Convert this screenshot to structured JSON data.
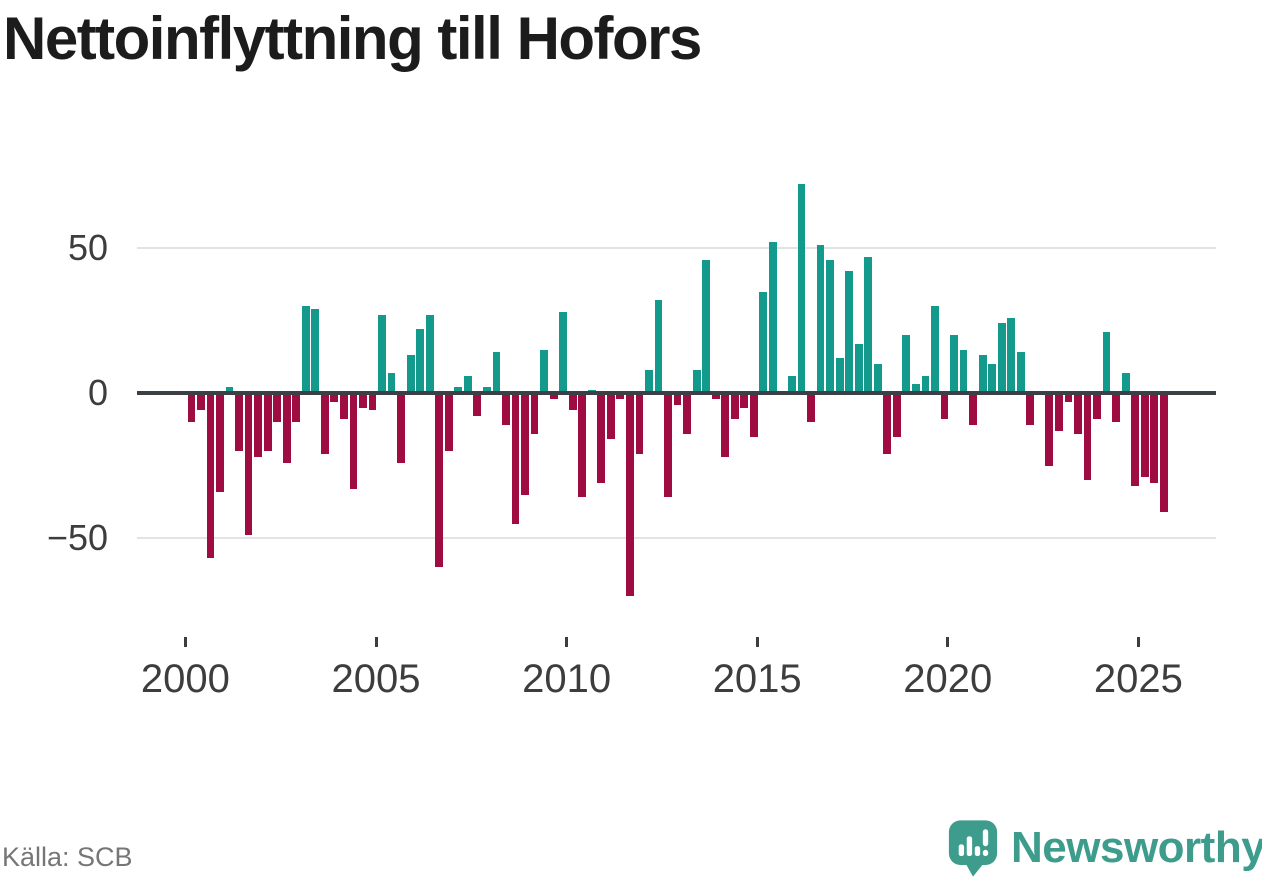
{
  "title": "Nettoinflyttning till Hofors",
  "source": "Källa: SCB",
  "logo": {
    "text": "Newsworthy",
    "icon": "newsworthy-speech-bubble-bar-chart-icon"
  },
  "colors": {
    "background": "#ffffff",
    "positive_bar": "#149a8c",
    "negative_bar": "#9e0c42",
    "zero_axis": "#3a4045",
    "gridline": "#e3e3e3",
    "tick_label": "#3d3d3d",
    "title_text": "#1c1c1c",
    "source_text": "#767676",
    "logo_teal": "#3d9c8c"
  },
  "y_axis": {
    "ticks": [
      {
        "label": "50",
        "value": 50
      },
      {
        "label": "0",
        "value": 0
      },
      {
        "label": "−50",
        "value": -50
      }
    ]
  },
  "x_axis": {
    "tick_labels": [
      "2000",
      "2005",
      "2010",
      "2015",
      "2020",
      "2025"
    ]
  },
  "chart_data": {
    "type": "bar",
    "title": "Nettoinflyttning till Hofors",
    "frequency": "quarterly",
    "x_start": "2000-Q1",
    "x_end": "2025-Q3",
    "x_tick_labels": [
      "2000",
      "2005",
      "2010",
      "2015",
      "2020",
      "2025"
    ],
    "ylim": [
      -75,
      80
    ],
    "y_gridlines": [
      50,
      0,
      -50
    ],
    "grid": "horizontal-only",
    "legend": "none",
    "positive_color": "#149a8c",
    "negative_color": "#9e0c42",
    "series": [
      {
        "name": "Nettoinflyttning",
        "values": [
          -10,
          -6,
          -57,
          -34,
          2,
          -20,
          -49,
          -22,
          -20,
          -10,
          -24,
          -10,
          30,
          29,
          -21,
          -3,
          -9,
          -33,
          -5,
          -6,
          27,
          7,
          -24,
          13,
          22,
          27,
          -60,
          -20,
          2,
          6,
          -8,
          2,
          14,
          -11,
          -45,
          -35,
          -14,
          15,
          -2,
          28,
          -6,
          -36,
          1,
          -31,
          -16,
          -2,
          -70,
          -21,
          8,
          32,
          -36,
          -4,
          -14,
          8,
          46,
          -2,
          -22,
          -9,
          -5,
          -15,
          35,
          52,
          0,
          6,
          72,
          -10,
          51,
          46,
          12,
          42,
          17,
          47,
          10,
          -21,
          -15,
          20,
          3,
          6,
          30,
          -9,
          20,
          15,
          -11,
          13,
          10,
          24,
          26,
          14,
          -11,
          0,
          -25,
          -13,
          -3,
          -14,
          -30,
          -9,
          21,
          -10,
          7,
          -32,
          -29,
          -31,
          -41
        ]
      }
    ]
  }
}
